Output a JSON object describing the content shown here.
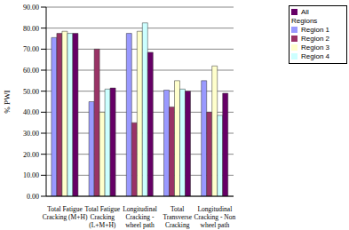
{
  "chart_data": {
    "type": "bar",
    "y_label": "% PWI",
    "categories": [
      "Total Fatigue Cracking (M+H)",
      "Total Fatigue Cracking (L+M+H)",
      "Longitudinal Cracking - wheel path",
      "Total Transverse Cracking",
      "Longitudinal Cracking - Non wheel path"
    ],
    "series": [
      {
        "name": "Region 1",
        "color": "#9999FF",
        "values": [
          75.5,
          45,
          77.5,
          50.5,
          55
        ]
      },
      {
        "name": "Region 2",
        "color": "#993366",
        "values": [
          77.5,
          70,
          35,
          42.5,
          40
        ]
      },
      {
        "name": "Region 3",
        "color": "#FFFFCC",
        "values": [
          78.5,
          40,
          78.5,
          55,
          62
        ]
      },
      {
        "name": "Region 4",
        "color": "#CCFFFF",
        "values": [
          77.5,
          51,
          82.5,
          51,
          38.5
        ]
      },
      {
        "name": "All Regions",
        "color": "#660066",
        "values": [
          77.5,
          51.5,
          68.5,
          50,
          49
        ]
      }
    ],
    "ylim": [
      0,
      90
    ],
    "yticks": [
      {
        "value": 0,
        "label": "0.00"
      },
      {
        "value": 10,
        "label": "10.00"
      },
      {
        "value": 20,
        "label": "20.00"
      },
      {
        "value": 30,
        "label": "30.00"
      },
      {
        "value": 40,
        "label": "40.00"
      },
      {
        "value": 50,
        "label": "50.00"
      },
      {
        "value": 60,
        "label": "60.00"
      },
      {
        "value": 70,
        "label": "70.00"
      },
      {
        "value": 80,
        "label": "80.00"
      },
      {
        "value": 90,
        "label": "90.00"
      }
    ],
    "grid": true,
    "legend": "upper right"
  }
}
